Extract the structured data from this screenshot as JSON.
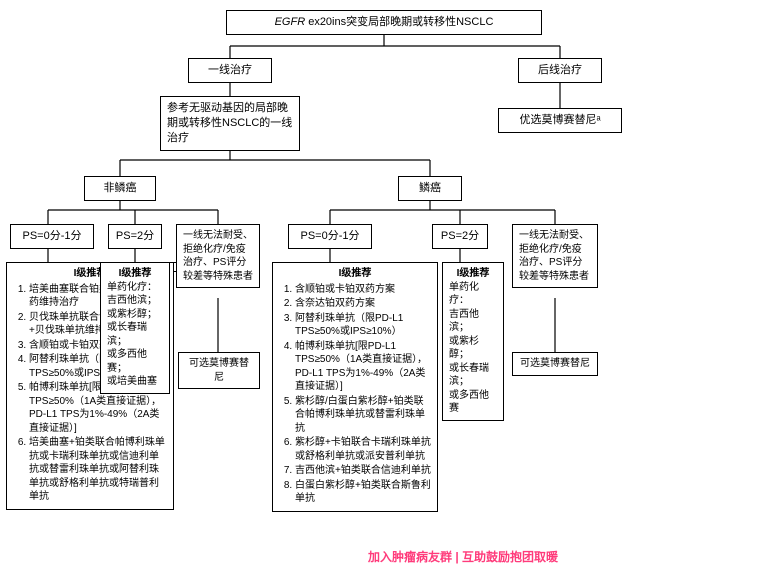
{
  "type": "flowchart",
  "background_color": "#ffffff",
  "stroke_color": "#000000",
  "text_color": "#000000",
  "watermark_color": "#ff3b7b",
  "font_size_node": 11,
  "font_size_small": 10,
  "root": {
    "prefix": "EGFR",
    "suffix": " ex20ins突变局部晚期或转移性NSCLC"
  },
  "branch_first": "一线治疗",
  "branch_later": "后线治疗",
  "first_ref": "参考无驱动基因的局部晚期或转移性NSCLC的一线治疗",
  "later_pref": "优选莫博赛替尼ᵃ",
  "non_sq": "非鳞癌",
  "sq": "鳞癌",
  "ps01": "PS=0分-1分",
  "ps2": "PS=2分",
  "col_intol": "一线无法耐受、拒绝化疗/免疫治疗、PS评分较差等特殊患者",
  "opt_mobo": "可选莫博赛替尼",
  "rec_title": "I级推荐",
  "ps2_title": "I级推荐",
  "ps2_sub": "单药化疗：",
  "ps2_lines_nonsq": [
    "吉西他滨；",
    "或紫杉醇；",
    "或长春瑞滨；",
    "或多西他赛；",
    "或培美曲塞"
  ],
  "ps2_lines_sq": [
    "吉西他滨；",
    "或紫杉醇；",
    "或长春瑞滨；",
    "或多西他赛"
  ],
  "nonsq_items": [
    "培美曲塞联合铂类+培美曲塞单药维持治疗",
    "贝伐珠单抗联合含铂双药化疗+贝伐珠单抗维持治疗",
    "含顺铂或卡铂双药方案",
    "阿替利珠单抗（限PD-L1 TPS≥50%或IPS≥10%）",
    "帕博利珠单抗[限PD-L1 TPS≥50%（1A类直接证据），PD-L1 TPS为1%-49%（2A类直接证据）]",
    "培美曲塞+铂类联合帕博利珠单抗或卡瑞利珠单抗或信迪利单抗或替雷利珠单抗或阿替利珠单抗或舒格利单抗或特瑞普利单抗"
  ],
  "sq_items": [
    "含顺铂或卡铂双药方案",
    "含奈达铂双药方案",
    "阿替利珠单抗（限PD-L1 TPS≥50%或IPS≥10%）",
    "帕博利珠单抗[限PD-L1 TPS≥50%（1A类直接证据），PD-L1 TPS为1%-49%（2A类直接证据）]",
    "紫杉醇/白蛋白紫杉醇+铂类联合帕博利珠单抗或替雷利珠单抗",
    "紫杉醇+卡铂联合卡瑞利珠单抗或舒格利单抗或派安普利单抗",
    "吉西他滨+铂类联合信迪利单抗",
    "白蛋白紫杉醇+铂类联合斯鲁利单抗"
  ],
  "watermark": "加入肿瘤病友群 | 互助鼓励抱团取暖"
}
